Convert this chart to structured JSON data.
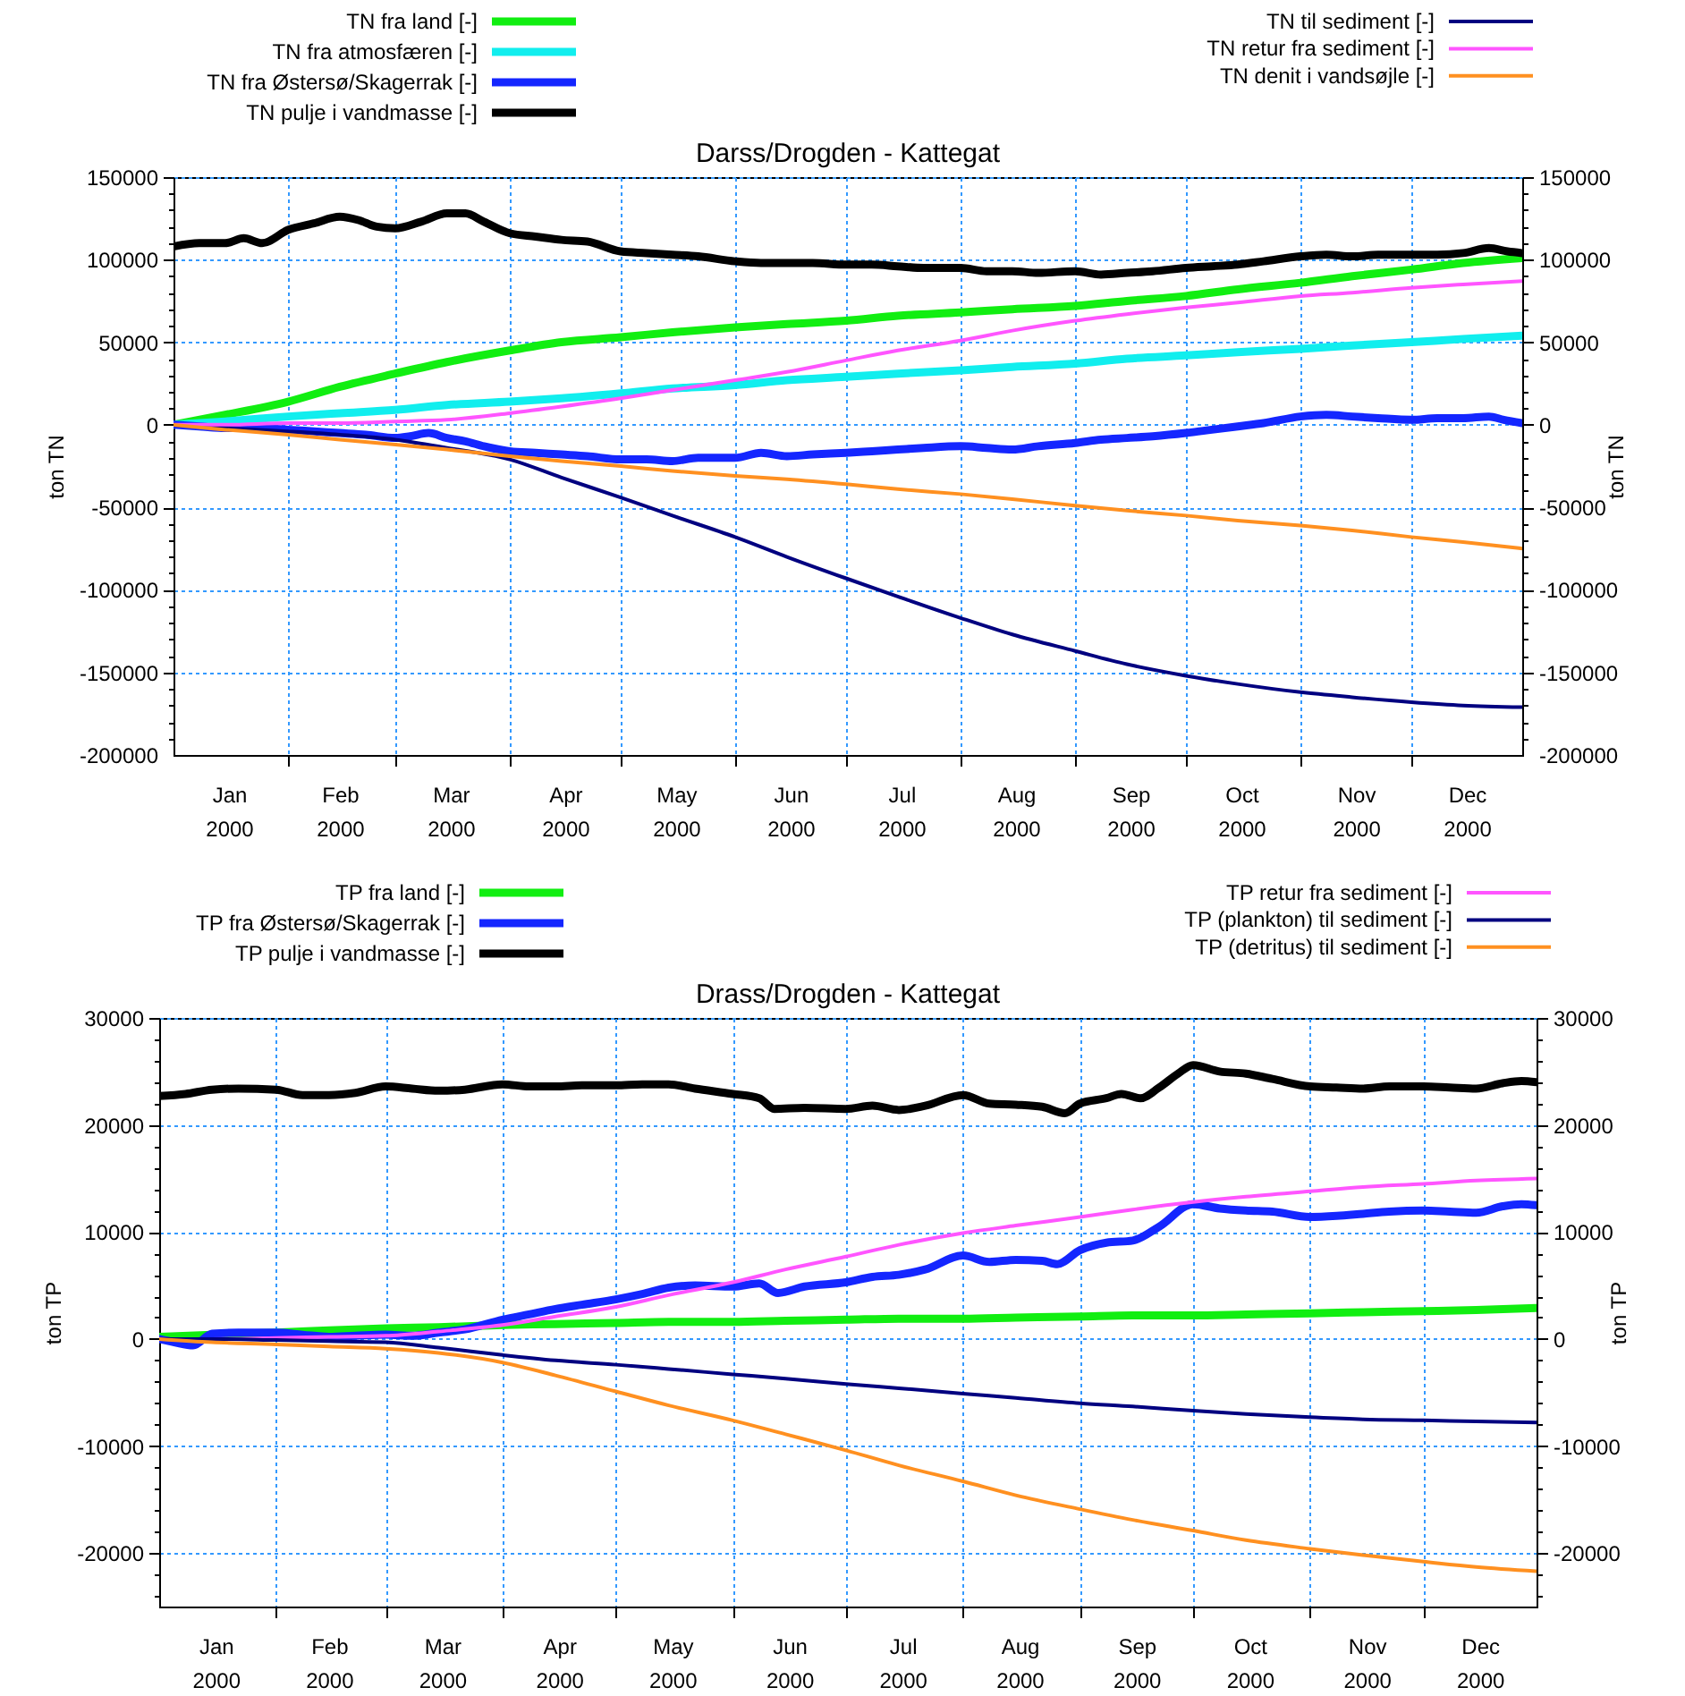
{
  "chart_data": [
    {
      "type": "line",
      "title": "Darss/Drogden - Kattegat",
      "ylabel": "ton TN",
      "y2label": "ton TN",
      "legend": "top",
      "grid": true,
      "xlim": [
        "2000-01-01",
        "2000-12-31"
      ],
      "xticks": [
        {
          "value": "2000-01-16",
          "label": "Jan\n2000"
        },
        {
          "value": "2000-02-01",
          "label": null
        },
        {
          "value": "2000-02-15",
          "label": "Feb\n2000"
        },
        {
          "value": "2000-03-01",
          "label": null
        },
        {
          "value": "2000-03-16",
          "label": "Mar\n2000"
        },
        {
          "value": "2000-04-01",
          "label": null
        },
        {
          "value": "2000-04-16",
          "label": "Apr\n2000"
        },
        {
          "value": "2000-05-01",
          "label": null
        },
        {
          "value": "2000-05-16",
          "label": "May\n2000"
        },
        {
          "value": "2000-06-01",
          "label": null
        },
        {
          "value": "2000-06-16",
          "label": "Jun\n2000"
        },
        {
          "value": "2000-07-01",
          "label": null
        },
        {
          "value": "2000-07-16",
          "label": "Jul\n2000"
        },
        {
          "value": "2000-08-01",
          "label": null
        },
        {
          "value": "2000-08-16",
          "label": "Aug\n2000"
        },
        {
          "value": "2000-09-01",
          "label": null
        },
        {
          "value": "2000-09-16",
          "label": "Sep\n2000"
        },
        {
          "value": "2000-10-01",
          "label": null
        },
        {
          "value": "2000-10-16",
          "label": "Oct\n2000"
        },
        {
          "value": "2000-11-01",
          "label": null
        },
        {
          "value": "2000-11-16",
          "label": "Nov\n2000"
        },
        {
          "value": "2000-12-01",
          "label": null
        },
        {
          "value": "2000-12-16",
          "label": "Dec\n2000"
        }
      ],
      "ylim": [
        -200000,
        150000
      ],
      "yticks": [
        -200000,
        {
          "value": -190000,
          "label": null
        },
        {
          "value": -180000,
          "label": null
        },
        {
          "value": -170000,
          "label": null
        },
        {
          "value": -160000,
          "label": null
        },
        -150000,
        {
          "value": -140000,
          "label": null
        },
        {
          "value": -130000,
          "label": null
        },
        {
          "value": -120000,
          "label": null
        },
        {
          "value": -110000,
          "label": null
        },
        -100000,
        {
          "value": -90000,
          "label": null
        },
        {
          "value": -80000,
          "label": null
        },
        {
          "value": -70000,
          "label": null
        },
        {
          "value": -60000,
          "label": null
        },
        -50000,
        {
          "value": -40000,
          "label": null
        },
        {
          "value": -30000,
          "label": null
        },
        {
          "value": -20000,
          "label": null
        },
        {
          "value": -10000,
          "label": null
        },
        0,
        {
          "value": 10000,
          "label": null
        },
        {
          "value": 20000,
          "label": null
        },
        {
          "value": 30000,
          "label": null
        },
        {
          "value": 40000,
          "label": null
        },
        50000,
        {
          "value": 60000,
          "label": null
        },
        {
          "value": 70000,
          "label": null
        },
        {
          "value": 80000,
          "label": null
        },
        {
          "value": 90000,
          "label": null
        },
        100000,
        {
          "value": 110000,
          "label": null
        },
        {
          "value": 120000,
          "label": null
        },
        {
          "value": 130000,
          "label": null
        },
        {
          "value": 140000,
          "label": null
        },
        150000
      ],
      "y2lim": [
        -200000,
        150000
      ],
      "y2ticks": [
        -200000,
        {
          "value": -190000,
          "label": null
        },
        {
          "value": -180000,
          "label": null
        },
        {
          "value": -170000,
          "label": null
        },
        {
          "value": -160000,
          "label": null
        },
        -150000,
        {
          "value": -140000,
          "label": null
        },
        {
          "value": -130000,
          "label": null
        },
        {
          "value": -120000,
          "label": null
        },
        {
          "value": -110000,
          "label": null
        },
        -100000,
        {
          "value": -90000,
          "label": null
        },
        {
          "value": -80000,
          "label": null
        },
        {
          "value": -70000,
          "label": null
        },
        {
          "value": -60000,
          "label": null
        },
        -50000,
        {
          "value": -40000,
          "label": null
        },
        {
          "value": -30000,
          "label": null
        },
        {
          "value": -20000,
          "label": null
        },
        {
          "value": -10000,
          "label": null
        },
        0,
        {
          "value": 10000,
          "label": null
        },
        {
          "value": 20000,
          "label": null
        },
        {
          "value": 30000,
          "label": null
        },
        {
          "value": 40000,
          "label": null
        },
        50000,
        {
          "value": 60000,
          "label": null
        },
        {
          "value": 70000,
          "label": null
        },
        {
          "value": 80000,
          "label": null
        },
        {
          "value": 90000,
          "label": null
        },
        100000,
        {
          "value": 110000,
          "label": null
        },
        {
          "value": 120000,
          "label": null
        },
        {
          "value": 130000,
          "label": null
        },
        {
          "value": 140000,
          "label": null
        },
        150000
      ],
      "x": [
        "2000-01-01",
        "2000-01-15",
        "2000-02-01",
        "2000-02-15",
        "2000-03-01",
        "2000-03-15",
        "2000-04-01",
        "2000-04-15",
        "2000-05-01",
        "2000-05-15",
        "2000-06-01",
        "2000-06-15",
        "2000-07-01",
        "2000-07-15",
        "2000-08-01",
        "2000-08-15",
        "2000-09-01",
        "2000-09-15",
        "2000-10-01",
        "2000-10-15",
        "2000-11-01",
        "2000-11-15",
        "2000-12-01",
        "2000-12-15",
        "2000-12-31"
      ],
      "series": [
        {
          "name": "TN fra land [-]",
          "color": "#11ee11",
          "values": [
            0,
            6000,
            14000,
            23000,
            31000,
            38000,
            45000,
            50000,
            53000,
            56000,
            59000,
            61000,
            63000,
            66000,
            68000,
            70000,
            72000,
            75000,
            78000,
            82000,
            86000,
            90000,
            94000,
            98000,
            101000
          ]
        },
        {
          "name": "TN fra atmosfæren [-]",
          "color": "#11eeee",
          "values": [
            0,
            2000,
            5000,
            7000,
            9000,
            12000,
            14000,
            16000,
            19000,
            22000,
            24000,
            27000,
            29000,
            31000,
            33000,
            35000,
            37000,
            40000,
            42000,
            44000,
            46000,
            48000,
            50000,
            52000,
            54000
          ]
        },
        {
          "name": "TN fra Østersø/Skagerrak [-]",
          "color": "#1426ff",
          "x": [
            "2000-01-01",
            "2000-01-08",
            "2000-01-15",
            "2000-01-22",
            "2000-02-01",
            "2000-02-08",
            "2000-02-15",
            "2000-02-22",
            "2000-03-01",
            "2000-03-05",
            "2000-03-10",
            "2000-03-15",
            "2000-03-20",
            "2000-03-25",
            "2000-04-01",
            "2000-04-08",
            "2000-04-15",
            "2000-04-22",
            "2000-05-01",
            "2000-05-08",
            "2000-05-15",
            "2000-05-22",
            "2000-06-01",
            "2000-06-08",
            "2000-06-15",
            "2000-06-22",
            "2000-07-01",
            "2000-07-08",
            "2000-07-15",
            "2000-07-22",
            "2000-08-01",
            "2000-08-08",
            "2000-08-15",
            "2000-08-22",
            "2000-09-01",
            "2000-09-08",
            "2000-09-15",
            "2000-09-22",
            "2000-10-01",
            "2000-10-08",
            "2000-10-15",
            "2000-10-22",
            "2000-11-01",
            "2000-11-08",
            "2000-11-15",
            "2000-11-22",
            "2000-12-01",
            "2000-12-08",
            "2000-12-15",
            "2000-12-22",
            "2000-12-26",
            "2000-12-31"
          ],
          "values": [
            0,
            -1000,
            -2000,
            -2000,
            -3000,
            -4000,
            -5000,
            -6000,
            -8000,
            -7000,
            -5000,
            -8000,
            -10000,
            -13000,
            -16000,
            -17000,
            -18000,
            -19000,
            -21000,
            -21000,
            -22000,
            -20000,
            -20000,
            -17000,
            -19000,
            -18000,
            -17000,
            -16000,
            -15000,
            -14000,
            -13000,
            -14000,
            -15000,
            -13000,
            -11000,
            -9000,
            -8000,
            -7000,
            -5000,
            -3000,
            -1000,
            1000,
            5000,
            6000,
            5000,
            4000,
            3000,
            4000,
            4000,
            5000,
            3000,
            1000
          ]
        },
        {
          "name": "TN pulje i vandmasse [-]",
          "color": "#000000",
          "x": [
            "2000-01-01",
            "2000-01-08",
            "2000-01-15",
            "2000-01-20",
            "2000-01-25",
            "2000-02-01",
            "2000-02-08",
            "2000-02-15",
            "2000-02-20",
            "2000-02-25",
            "2000-03-01",
            "2000-03-08",
            "2000-03-15",
            "2000-03-20",
            "2000-03-25",
            "2000-04-01",
            "2000-04-08",
            "2000-04-15",
            "2000-04-22",
            "2000-05-01",
            "2000-05-08",
            "2000-05-15",
            "2000-05-22",
            "2000-06-01",
            "2000-06-08",
            "2000-06-15",
            "2000-06-22",
            "2000-07-01",
            "2000-07-08",
            "2000-07-15",
            "2000-07-22",
            "2000-08-01",
            "2000-08-08",
            "2000-08-15",
            "2000-08-22",
            "2000-09-01",
            "2000-09-08",
            "2000-09-15",
            "2000-09-22",
            "2000-10-01",
            "2000-10-08",
            "2000-10-15",
            "2000-10-22",
            "2000-11-01",
            "2000-11-08",
            "2000-11-15",
            "2000-11-22",
            "2000-12-01",
            "2000-12-08",
            "2000-12-15",
            "2000-12-22",
            "2000-12-27",
            "2000-12-31"
          ],
          "values": [
            108000,
            110000,
            110000,
            113000,
            110000,
            118000,
            122000,
            126000,
            124000,
            120000,
            119000,
            123000,
            128000,
            128000,
            123000,
            116000,
            114000,
            112000,
            111000,
            105000,
            104000,
            103000,
            102000,
            99000,
            98000,
            98000,
            98000,
            97000,
            97000,
            96000,
            95000,
            95000,
            93000,
            93000,
            92000,
            93000,
            91000,
            92000,
            93000,
            95000,
            96000,
            97000,
            99000,
            102000,
            103000,
            102000,
            103000,
            103000,
            103000,
            104000,
            107000,
            105000,
            104000
          ]
        },
        {
          "name": "TN til sediment [-]",
          "color": "#000080",
          "values": [
            0,
            -2000,
            -4000,
            -6000,
            -9000,
            -14000,
            -21000,
            -32000,
            -44000,
            -55000,
            -68000,
            -80000,
            -93000,
            -104000,
            -117000,
            -127000,
            -137000,
            -145000,
            -152000,
            -157000,
            -162000,
            -165000,
            -168000,
            -170000,
            -171000
          ]
        },
        {
          "name": "TN retur fra sediment [-]",
          "color": "#ff55ff",
          "values": [
            0,
            0,
            1000,
            1000,
            2000,
            3000,
            7000,
            11000,
            16000,
            21000,
            27000,
            32000,
            39000,
            45000,
            51000,
            57000,
            63000,
            67000,
            71000,
            74000,
            78000,
            80000,
            83000,
            85000,
            87000
          ]
        },
        {
          "name": "TN denit i vandsøjle [-]",
          "color": "#ff9020",
          "values": [
            0,
            -3000,
            -6000,
            -9000,
            -12000,
            -15000,
            -19000,
            -22000,
            -25000,
            -28000,
            -31000,
            -33000,
            -36000,
            -39000,
            -42000,
            -45000,
            -49000,
            -52000,
            -55000,
            -58000,
            -61000,
            -64000,
            -68000,
            -71000,
            -75000
          ]
        }
      ]
    },
    {
      "type": "line",
      "title": "Drass/Drogden - Kattegat",
      "ylabel": "ton TP",
      "y2label": "ton TP",
      "legend": "top",
      "grid": true,
      "xlim": [
        "2000-01-01",
        "2000-12-31"
      ],
      "xticks": [
        {
          "value": "2000-01-16",
          "label": "Jan\n2000"
        },
        {
          "value": "2000-02-01",
          "label": null
        },
        {
          "value": "2000-02-15",
          "label": "Feb\n2000"
        },
        {
          "value": "2000-03-01",
          "label": null
        },
        {
          "value": "2000-03-16",
          "label": "Mar\n2000"
        },
        {
          "value": "2000-04-01",
          "label": null
        },
        {
          "value": "2000-04-16",
          "label": "Apr\n2000"
        },
        {
          "value": "2000-05-01",
          "label": null
        },
        {
          "value": "2000-05-16",
          "label": "May\n2000"
        },
        {
          "value": "2000-06-01",
          "label": null
        },
        {
          "value": "2000-06-16",
          "label": "Jun\n2000"
        },
        {
          "value": "2000-07-01",
          "label": null
        },
        {
          "value": "2000-07-16",
          "label": "Jul\n2000"
        },
        {
          "value": "2000-08-01",
          "label": null
        },
        {
          "value": "2000-08-16",
          "label": "Aug\n2000"
        },
        {
          "value": "2000-09-01",
          "label": null
        },
        {
          "value": "2000-09-16",
          "label": "Sep\n2000"
        },
        {
          "value": "2000-10-01",
          "label": null
        },
        {
          "value": "2000-10-16",
          "label": "Oct\n2000"
        },
        {
          "value": "2000-11-01",
          "label": null
        },
        {
          "value": "2000-11-16",
          "label": "Nov\n2000"
        },
        {
          "value": "2000-12-01",
          "label": null
        },
        {
          "value": "2000-12-16",
          "label": "Dec\n2000"
        }
      ],
      "ylim": [
        -25000,
        30000
      ],
      "yticks": [
        {
          "value": -24000,
          "label": null
        },
        {
          "value": -22000,
          "label": null
        },
        -20000,
        {
          "value": -18000,
          "label": null
        },
        {
          "value": -16000,
          "label": null
        },
        {
          "value": -14000,
          "label": null
        },
        {
          "value": -12000,
          "label": null
        },
        -10000,
        {
          "value": -8000,
          "label": null
        },
        {
          "value": -6000,
          "label": null
        },
        {
          "value": -4000,
          "label": null
        },
        {
          "value": -2000,
          "label": null
        },
        0,
        {
          "value": 2000,
          "label": null
        },
        {
          "value": 4000,
          "label": null
        },
        {
          "value": 6000,
          "label": null
        },
        {
          "value": 8000,
          "label": null
        },
        10000,
        {
          "value": 12000,
          "label": null
        },
        {
          "value": 14000,
          "label": null
        },
        {
          "value": 16000,
          "label": null
        },
        {
          "value": 18000,
          "label": null
        },
        20000,
        {
          "value": 22000,
          "label": null
        },
        {
          "value": 24000,
          "label": null
        },
        {
          "value": 26000,
          "label": null
        },
        {
          "value": 28000,
          "label": null
        },
        30000
      ],
      "y2lim": [
        -25000,
        30000
      ],
      "y2ticks": [
        {
          "value": -24000,
          "label": null
        },
        {
          "value": -22000,
          "label": null
        },
        -20000,
        {
          "value": -18000,
          "label": null
        },
        {
          "value": -16000,
          "label": null
        },
        {
          "value": -14000,
          "label": null
        },
        {
          "value": -12000,
          "label": null
        },
        -10000,
        {
          "value": -8000,
          "label": null
        },
        {
          "value": -6000,
          "label": null
        },
        {
          "value": -4000,
          "label": null
        },
        {
          "value": -2000,
          "label": null
        },
        0,
        {
          "value": 2000,
          "label": null
        },
        {
          "value": 4000,
          "label": null
        },
        {
          "value": 6000,
          "label": null
        },
        {
          "value": 8000,
          "label": null
        },
        10000,
        {
          "value": 12000,
          "label": null
        },
        {
          "value": 14000,
          "label": null
        },
        {
          "value": 16000,
          "label": null
        },
        {
          "value": 18000,
          "label": null
        },
        20000,
        {
          "value": 22000,
          "label": null
        },
        {
          "value": 24000,
          "label": null
        },
        {
          "value": 26000,
          "label": null
        },
        {
          "value": 28000,
          "label": null
        },
        30000
      ],
      "x": [
        "2000-01-01",
        "2000-01-15",
        "2000-02-01",
        "2000-02-15",
        "2000-03-01",
        "2000-03-15",
        "2000-04-01",
        "2000-04-15",
        "2000-05-01",
        "2000-05-15",
        "2000-06-01",
        "2000-06-15",
        "2000-07-01",
        "2000-07-15",
        "2000-08-01",
        "2000-08-15",
        "2000-09-01",
        "2000-09-15",
        "2000-10-01",
        "2000-10-15",
        "2000-11-01",
        "2000-11-15",
        "2000-12-01",
        "2000-12-15",
        "2000-12-31"
      ],
      "series": [
        {
          "name": "TP fra land [-]",
          "color": "#11ee11",
          "values": [
            200,
            400,
            600,
            800,
            1000,
            1100,
            1300,
            1400,
            1500,
            1600,
            1600,
            1700,
            1800,
            1900,
            1900,
            2000,
            2100,
            2200,
            2200,
            2300,
            2400,
            2500,
            2600,
            2700,
            2900
          ]
        },
        {
          "name": "TP fra Østersø/Skagerrak [-]",
          "color": "#1426ff",
          "x": [
            "2000-01-01",
            "2000-01-05",
            "2000-01-10",
            "2000-01-15",
            "2000-01-22",
            "2000-02-01",
            "2000-02-08",
            "2000-02-15",
            "2000-02-22",
            "2000-03-01",
            "2000-03-08",
            "2000-03-15",
            "2000-03-22",
            "2000-04-01",
            "2000-04-08",
            "2000-04-15",
            "2000-04-22",
            "2000-05-01",
            "2000-05-08",
            "2000-05-15",
            "2000-05-22",
            "2000-06-01",
            "2000-06-08",
            "2000-06-13",
            "2000-06-20",
            "2000-07-01",
            "2000-07-08",
            "2000-07-15",
            "2000-07-22",
            "2000-08-01",
            "2000-08-08",
            "2000-08-15",
            "2000-08-22",
            "2000-08-26",
            "2000-09-01",
            "2000-09-08",
            "2000-09-15",
            "2000-09-22",
            "2000-10-01",
            "2000-10-08",
            "2000-10-15",
            "2000-10-22",
            "2000-11-01",
            "2000-11-08",
            "2000-11-15",
            "2000-11-22",
            "2000-12-01",
            "2000-12-08",
            "2000-12-15",
            "2000-12-22",
            "2000-12-27",
            "2000-12-31"
          ],
          "values": [
            0,
            -300,
            -600,
            500,
            600,
            600,
            400,
            200,
            300,
            400,
            300,
            600,
            900,
            1800,
            2300,
            2800,
            3200,
            3700,
            4200,
            4800,
            5000,
            4900,
            5200,
            4300,
            4900,
            5300,
            5800,
            6000,
            6500,
            7800,
            7200,
            7400,
            7300,
            7000,
            8300,
            9000,
            9200,
            10500,
            12600,
            12200,
            12000,
            11900,
            11400,
            11500,
            11700,
            11900,
            12000,
            11900,
            11800,
            12400,
            12600,
            12500
          ]
        },
        {
          "name": "TP pulje i vandmasse [-]",
          "color": "#000000",
          "x": [
            "2000-01-01",
            "2000-01-08",
            "2000-01-15",
            "2000-01-22",
            "2000-02-01",
            "2000-02-08",
            "2000-02-15",
            "2000-02-22",
            "2000-03-01",
            "2000-03-08",
            "2000-03-15",
            "2000-03-22",
            "2000-04-01",
            "2000-04-08",
            "2000-04-15",
            "2000-04-22",
            "2000-05-01",
            "2000-05-08",
            "2000-05-15",
            "2000-05-22",
            "2000-06-01",
            "2000-06-08",
            "2000-06-12",
            "2000-06-20",
            "2000-07-01",
            "2000-07-08",
            "2000-07-15",
            "2000-07-22",
            "2000-08-01",
            "2000-08-08",
            "2000-08-15",
            "2000-08-22",
            "2000-08-28",
            "2000-09-01",
            "2000-09-08",
            "2000-09-12",
            "2000-09-17",
            "2000-09-22",
            "2000-09-27",
            "2000-10-01",
            "2000-10-08",
            "2000-10-15",
            "2000-10-22",
            "2000-11-01",
            "2000-11-08",
            "2000-11-15",
            "2000-11-22",
            "2000-12-01",
            "2000-12-08",
            "2000-12-15",
            "2000-12-22",
            "2000-12-27",
            "2000-12-31"
          ],
          "values": [
            22700,
            22900,
            23300,
            23400,
            23300,
            22800,
            22800,
            23000,
            23600,
            23400,
            23200,
            23300,
            23800,
            23600,
            23600,
            23700,
            23700,
            23800,
            23800,
            23400,
            22900,
            22500,
            21500,
            21600,
            21500,
            21800,
            21400,
            21800,
            22800,
            22000,
            21900,
            21700,
            21100,
            22000,
            22500,
            22900,
            22500,
            23500,
            24800,
            25600,
            25000,
            24800,
            24300,
            23600,
            23500,
            23400,
            23600,
            23600,
            23500,
            23400,
            23900,
            24100,
            24000
          ]
        },
        {
          "name": "TP retur fra sediment [-]",
          "color": "#ff55ff",
          "values": [
            0,
            0,
            100,
            200,
            300,
            700,
            1300,
            2100,
            3000,
            4100,
            5300,
            6500,
            7700,
            8800,
            9900,
            10600,
            11400,
            12100,
            12800,
            13300,
            13800,
            14200,
            14500,
            14800,
            15000
          ]
        },
        {
          "name": "TP (plankton) til sediment [-]",
          "color": "#000080",
          "values": [
            0,
            0,
            -100,
            -200,
            -300,
            -800,
            -1500,
            -2000,
            -2400,
            -2800,
            -3300,
            -3700,
            -4200,
            -4600,
            -5100,
            -5500,
            -6000,
            -6300,
            -6700,
            -7000,
            -7300,
            -7500,
            -7600,
            -7700,
            -7800
          ]
        },
        {
          "name": "TP (detritus) til sediment [-]",
          "color": "#ff9020",
          "values": [
            0,
            -300,
            -500,
            -700,
            -900,
            -1300,
            -2200,
            -3400,
            -4900,
            -6200,
            -7600,
            -8900,
            -10400,
            -11800,
            -13300,
            -14600,
            -15900,
            -16900,
            -17900,
            -18800,
            -19600,
            -20200,
            -20800,
            -21300,
            -21700
          ]
        }
      ]
    }
  ]
}
